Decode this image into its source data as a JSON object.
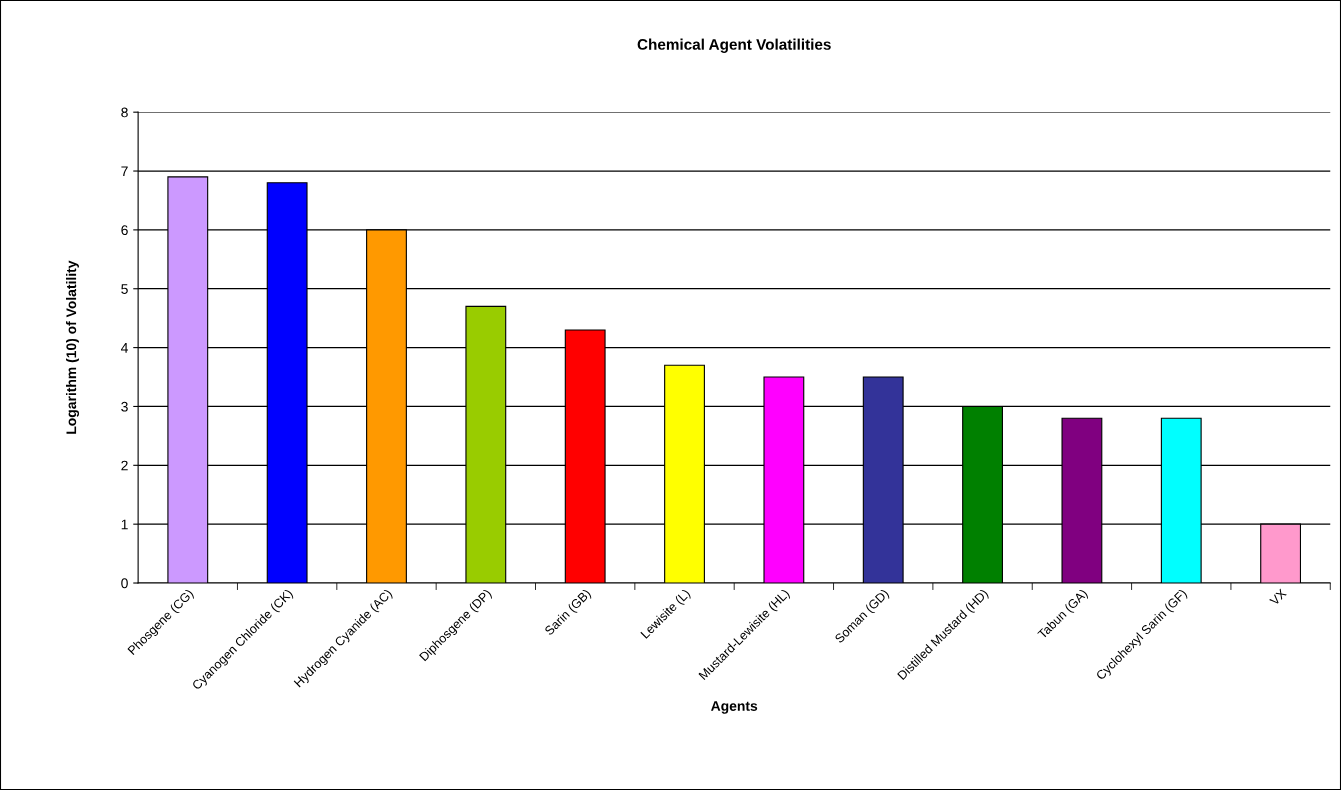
{
  "chart_data": {
    "type": "bar",
    "title": "Chemical Agent Volatilities",
    "xlabel": "Agents",
    "ylabel": "Logarithm (10) of Volatility",
    "categories": [
      "Phosgene (CG)",
      "Cyanogen Chloride (CK)",
      "Hydrogen Cyanide (AC)",
      "Diphosgene (DP)",
      "Sarin (GB)",
      "Lewisite (L)",
      "Mustard-Lewisite (HL)",
      "Soman (GD)",
      "Distilled Mustard (HD)",
      "Tabun (GA)",
      "Cyclohexyl Sarin (GF)",
      "VX"
    ],
    "values": [
      6.9,
      6.8,
      6.0,
      4.7,
      4.3,
      3.7,
      3.5,
      3.5,
      3.0,
      2.8,
      2.8,
      1.0
    ],
    "colors": [
      "#cc99ff",
      "#0000ff",
      "#ff9900",
      "#99cc00",
      "#ff0000",
      "#ffff00",
      "#ff00ff",
      "#333399",
      "#008000",
      "#800080",
      "#00ffff",
      "#ff99cc"
    ],
    "ylim": [
      0,
      8
    ],
    "yticks": [
      0,
      1,
      2,
      3,
      4,
      5,
      6,
      7,
      8
    ],
    "grid": "y",
    "legend": false
  }
}
